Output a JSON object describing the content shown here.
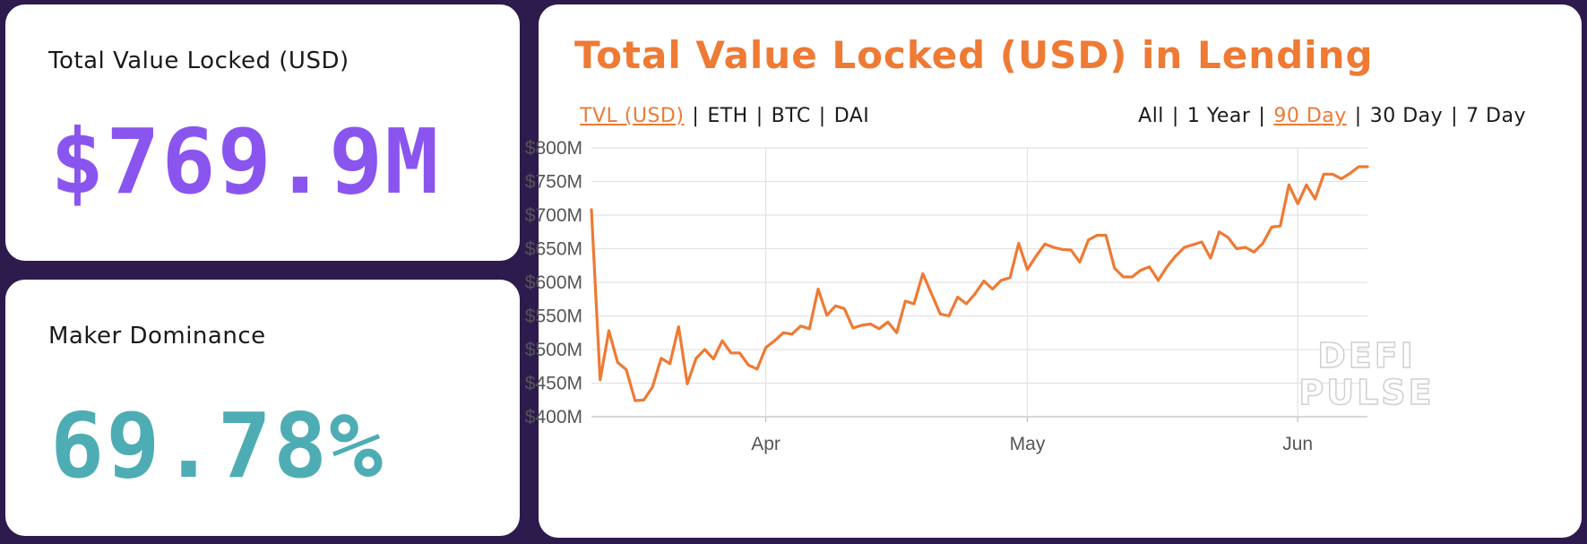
{
  "colors": {
    "background": "#2d1b4e",
    "tvl_value": "#8a55ef",
    "dominance_value": "#4eadb4",
    "accent": "#ee7a34",
    "grid": "#e3e3e3"
  },
  "tvl_card": {
    "label": "Total Value Locked (USD)",
    "value": "$769.9M"
  },
  "dominance_card": {
    "label": "Maker Dominance",
    "value": "69.78%"
  },
  "chart_panel": {
    "title": "Total Value Locked (USD) in Lending",
    "unit_options": [
      "TVL (USD)",
      "ETH",
      "BTC",
      "DAI"
    ],
    "selected_unit": "TVL (USD)",
    "range_options": [
      "All",
      "1 Year",
      "90 Day",
      "30 Day",
      "7 Day"
    ],
    "selected_range": "90 Day",
    "watermark": [
      "DEFI",
      "PULSE"
    ]
  },
  "chart_data": {
    "type": "line",
    "title": "Total Value Locked (USD) in Lending",
    "xlabel": "",
    "ylabel": "",
    "x_tick_labels": [
      "Apr",
      "May",
      "Jun"
    ],
    "y_tick_labels": [
      "$400M",
      "$450M",
      "$500M",
      "$550M",
      "$600M",
      "$650M",
      "$700M",
      "$750M",
      "$800M"
    ],
    "ylim": [
      400,
      800
    ],
    "y_unit": "$M",
    "grid": true,
    "series": [
      {
        "x": [
          "2020-03-12",
          "2020-03-13",
          "2020-03-14",
          "2020-03-15",
          "2020-03-16",
          "2020-03-17",
          "2020-03-18",
          "2020-03-19",
          "2020-03-20",
          "2020-03-21",
          "2020-03-22",
          "2020-03-23",
          "2020-03-24",
          "2020-03-25",
          "2020-03-26",
          "2020-03-27",
          "2020-03-28",
          "2020-03-29",
          "2020-03-30",
          "2020-03-31",
          "2020-04-01",
          "2020-04-02",
          "2020-04-03",
          "2020-04-04",
          "2020-04-05",
          "2020-04-06",
          "2020-04-07",
          "2020-04-08",
          "2020-04-09",
          "2020-04-10",
          "2020-04-11",
          "2020-04-12",
          "2020-04-13",
          "2020-04-14",
          "2020-04-15",
          "2020-04-16",
          "2020-04-17",
          "2020-04-18",
          "2020-04-19",
          "2020-04-20",
          "2020-04-21",
          "2020-04-22",
          "2020-04-23",
          "2020-04-24",
          "2020-04-25",
          "2020-04-26",
          "2020-04-27",
          "2020-04-28",
          "2020-04-29",
          "2020-04-30",
          "2020-05-01",
          "2020-05-02",
          "2020-05-03",
          "2020-05-04",
          "2020-05-05",
          "2020-05-06",
          "2020-05-07",
          "2020-05-08",
          "2020-05-09",
          "2020-05-10",
          "2020-05-11",
          "2020-05-12",
          "2020-05-13",
          "2020-05-14",
          "2020-05-15",
          "2020-05-16",
          "2020-05-17",
          "2020-05-18",
          "2020-05-19",
          "2020-05-20",
          "2020-05-21",
          "2020-05-22",
          "2020-05-23",
          "2020-05-24",
          "2020-05-25",
          "2020-05-26",
          "2020-05-27",
          "2020-05-28",
          "2020-05-29",
          "2020-05-30",
          "2020-05-31",
          "2020-06-01",
          "2020-06-02",
          "2020-06-03",
          "2020-06-04",
          "2020-06-05",
          "2020-06-06",
          "2020-06-07",
          "2020-06-08",
          "2020-06-09"
        ],
        "values": [
          708,
          455,
          528,
          481,
          470,
          424,
          425,
          444,
          487,
          479,
          534,
          449,
          487,
          500,
          486,
          513,
          495,
          495,
          477,
          471,
          503,
          513,
          525,
          523,
          535,
          531,
          590,
          551,
          565,
          561,
          532,
          536,
          538,
          531,
          541,
          525,
          572,
          568,
          613,
          583,
          553,
          550,
          578,
          568,
          583,
          602,
          590,
          603,
          607,
          658,
          619,
          639,
          657,
          652,
          649,
          648,
          630,
          663,
          670,
          670,
          621,
          608,
          608,
          618,
          623,
          603,
          623,
          639,
          652,
          656,
          660,
          636,
          675,
          667,
          650,
          652,
          645,
          658,
          682,
          684,
          745,
          717,
          745,
          724,
          761,
          761,
          754,
          762,
          772,
          772
        ]
      }
    ]
  }
}
